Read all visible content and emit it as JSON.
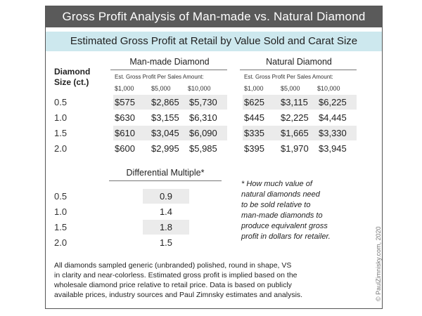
{
  "title": "Gross Profit Analysis of Man-made vs. Natural Diamond",
  "subtitle": "Estimated Gross Profit at Retail by Value Sold and Carat Size",
  "size_header_line1": "Diamond",
  "size_header_line2": "Size (ct.)",
  "man_made": {
    "label": "Man-made Diamond",
    "sub_label": "Est. Gross Profit Per Sales Amount:",
    "amounts": [
      "$1,000",
      "$5,000",
      "$10,000"
    ],
    "rows": [
      [
        "$575",
        "$2,865",
        "$5,730"
      ],
      [
        "$630",
        "$3,155",
        "$6,310"
      ],
      [
        "$610",
        "$3,045",
        "$6,090"
      ],
      [
        "$600",
        "$2,995",
        "$5,985"
      ]
    ]
  },
  "natural": {
    "label": "Natural Diamond",
    "sub_label": "Est. Gross Profit Per Sales Amount:",
    "amounts": [
      "$1,000",
      "$5,000",
      "$10,000"
    ],
    "rows": [
      [
        "$625",
        "$3,115",
        "$6,225"
      ],
      [
        "$445",
        "$2,225",
        "$4,445"
      ],
      [
        "$335",
        "$1,665",
        "$3,330"
      ],
      [
        "$395",
        "$1,970",
        "$3,945"
      ]
    ]
  },
  "sizes": [
    "0.5",
    "1.0",
    "1.5",
    "2.0"
  ],
  "multiple": {
    "label": "Differential Multiple*",
    "values": [
      "0.9",
      "1.4",
      "1.8",
      "1.5"
    ]
  },
  "note": [
    "* How much value of",
    "natural diamonds need",
    "to be sold relative to",
    "man-made diamonds to",
    "produce equivalent gross",
    "profit in dollars for retailer."
  ],
  "footnote": [
    "All diamonds sampled generic (unbranded) polished, round in shape, VS",
    "in clarity and near-colorless. Estimated gross profit is implied based on the",
    "wholesale diamond price relative to retail price. Data is based on publicly",
    "available prices, industry sources and Paul Zimnsky estimates and analysis."
  ],
  "copyright": "© PaulZimnisky.com, 2020"
}
